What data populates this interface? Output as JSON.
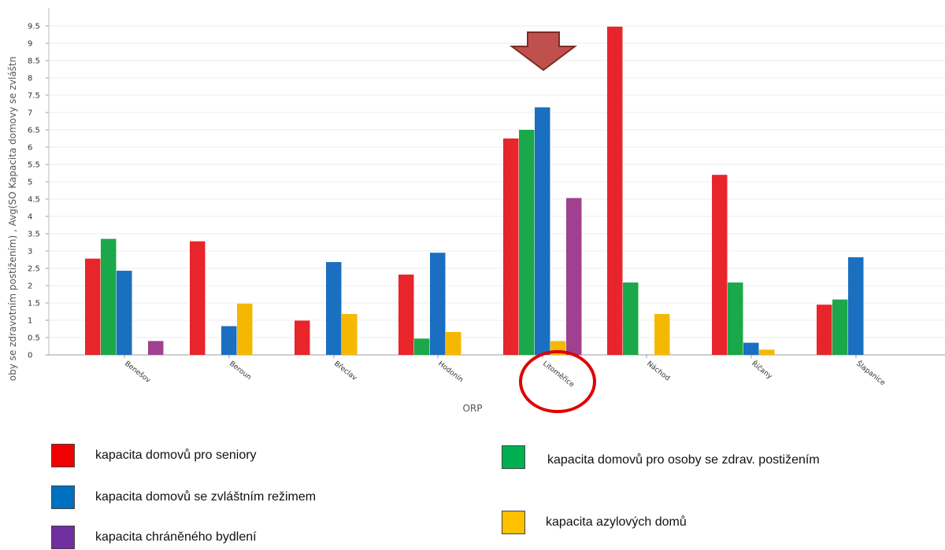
{
  "chart_data": {
    "type": "bar",
    "xlabel": "ORP",
    "ylabel": "oby se zdravotním postižením) , Avg(SO Kapacita domovy se zvláštn",
    "ylim": [
      0,
      9.5
    ],
    "yticks": [
      0,
      0.5,
      1,
      1.5,
      2,
      2.5,
      3,
      3.5,
      4,
      4.5,
      5,
      5.5,
      6,
      6.5,
      7,
      7.5,
      8,
      8.5,
      9,
      9.5
    ],
    "categories": [
      "Benešov",
      "Beroun",
      "Břeclav",
      "Hodonín",
      "Litoměřice",
      "Náchod",
      "Říčany",
      "Šlapanice"
    ],
    "series": [
      {
        "name": "kapacita domovů pro seniory",
        "color": "#e8252b",
        "values": [
          2.78,
          3.28,
          0.99,
          2.32,
          6.25,
          9.48,
          5.2,
          1.45
        ]
      },
      {
        "name": "kapacita domovů pro osoby se zdrav. postižením",
        "color": "#1aa84a",
        "values": [
          3.35,
          null,
          null,
          0.47,
          6.5,
          2.09,
          2.09,
          1.6
        ]
      },
      {
        "name": "kapacita domovů se zvláštním režimem",
        "color": "#1a6fc0",
        "values": [
          2.43,
          0.83,
          2.68,
          2.95,
          7.15,
          null,
          0.35,
          2.82
        ]
      },
      {
        "name": "kapacita azylových domů",
        "color": "#f5b800",
        "values": [
          null,
          1.48,
          1.18,
          0.66,
          0.4,
          1.18,
          0.15,
          null
        ]
      },
      {
        "name": "kapacita chráněného bydlení",
        "color": "#a0418f",
        "values": [
          0.4,
          null,
          null,
          null,
          4.53,
          null,
          null,
          null
        ]
      }
    ],
    "grid": true,
    "highlight": {
      "category": "Litoměřice",
      "marker": "arrow-and-circle"
    }
  },
  "legend": {
    "items": [
      {
        "label": "kapacita domovů pro seniory",
        "color": "#f00000"
      },
      {
        "label": "kapacita domovů pro osoby se zdrav. postižením",
        "color": "#00b050"
      },
      {
        "label": "kapacita domovů se zvláštním režimem",
        "color": "#0070c0"
      },
      {
        "label": "kapacita azylových domů",
        "color": "#ffc000"
      },
      {
        "label": "kapacita chráněného bydlení",
        "color": "#7030a0"
      }
    ]
  }
}
